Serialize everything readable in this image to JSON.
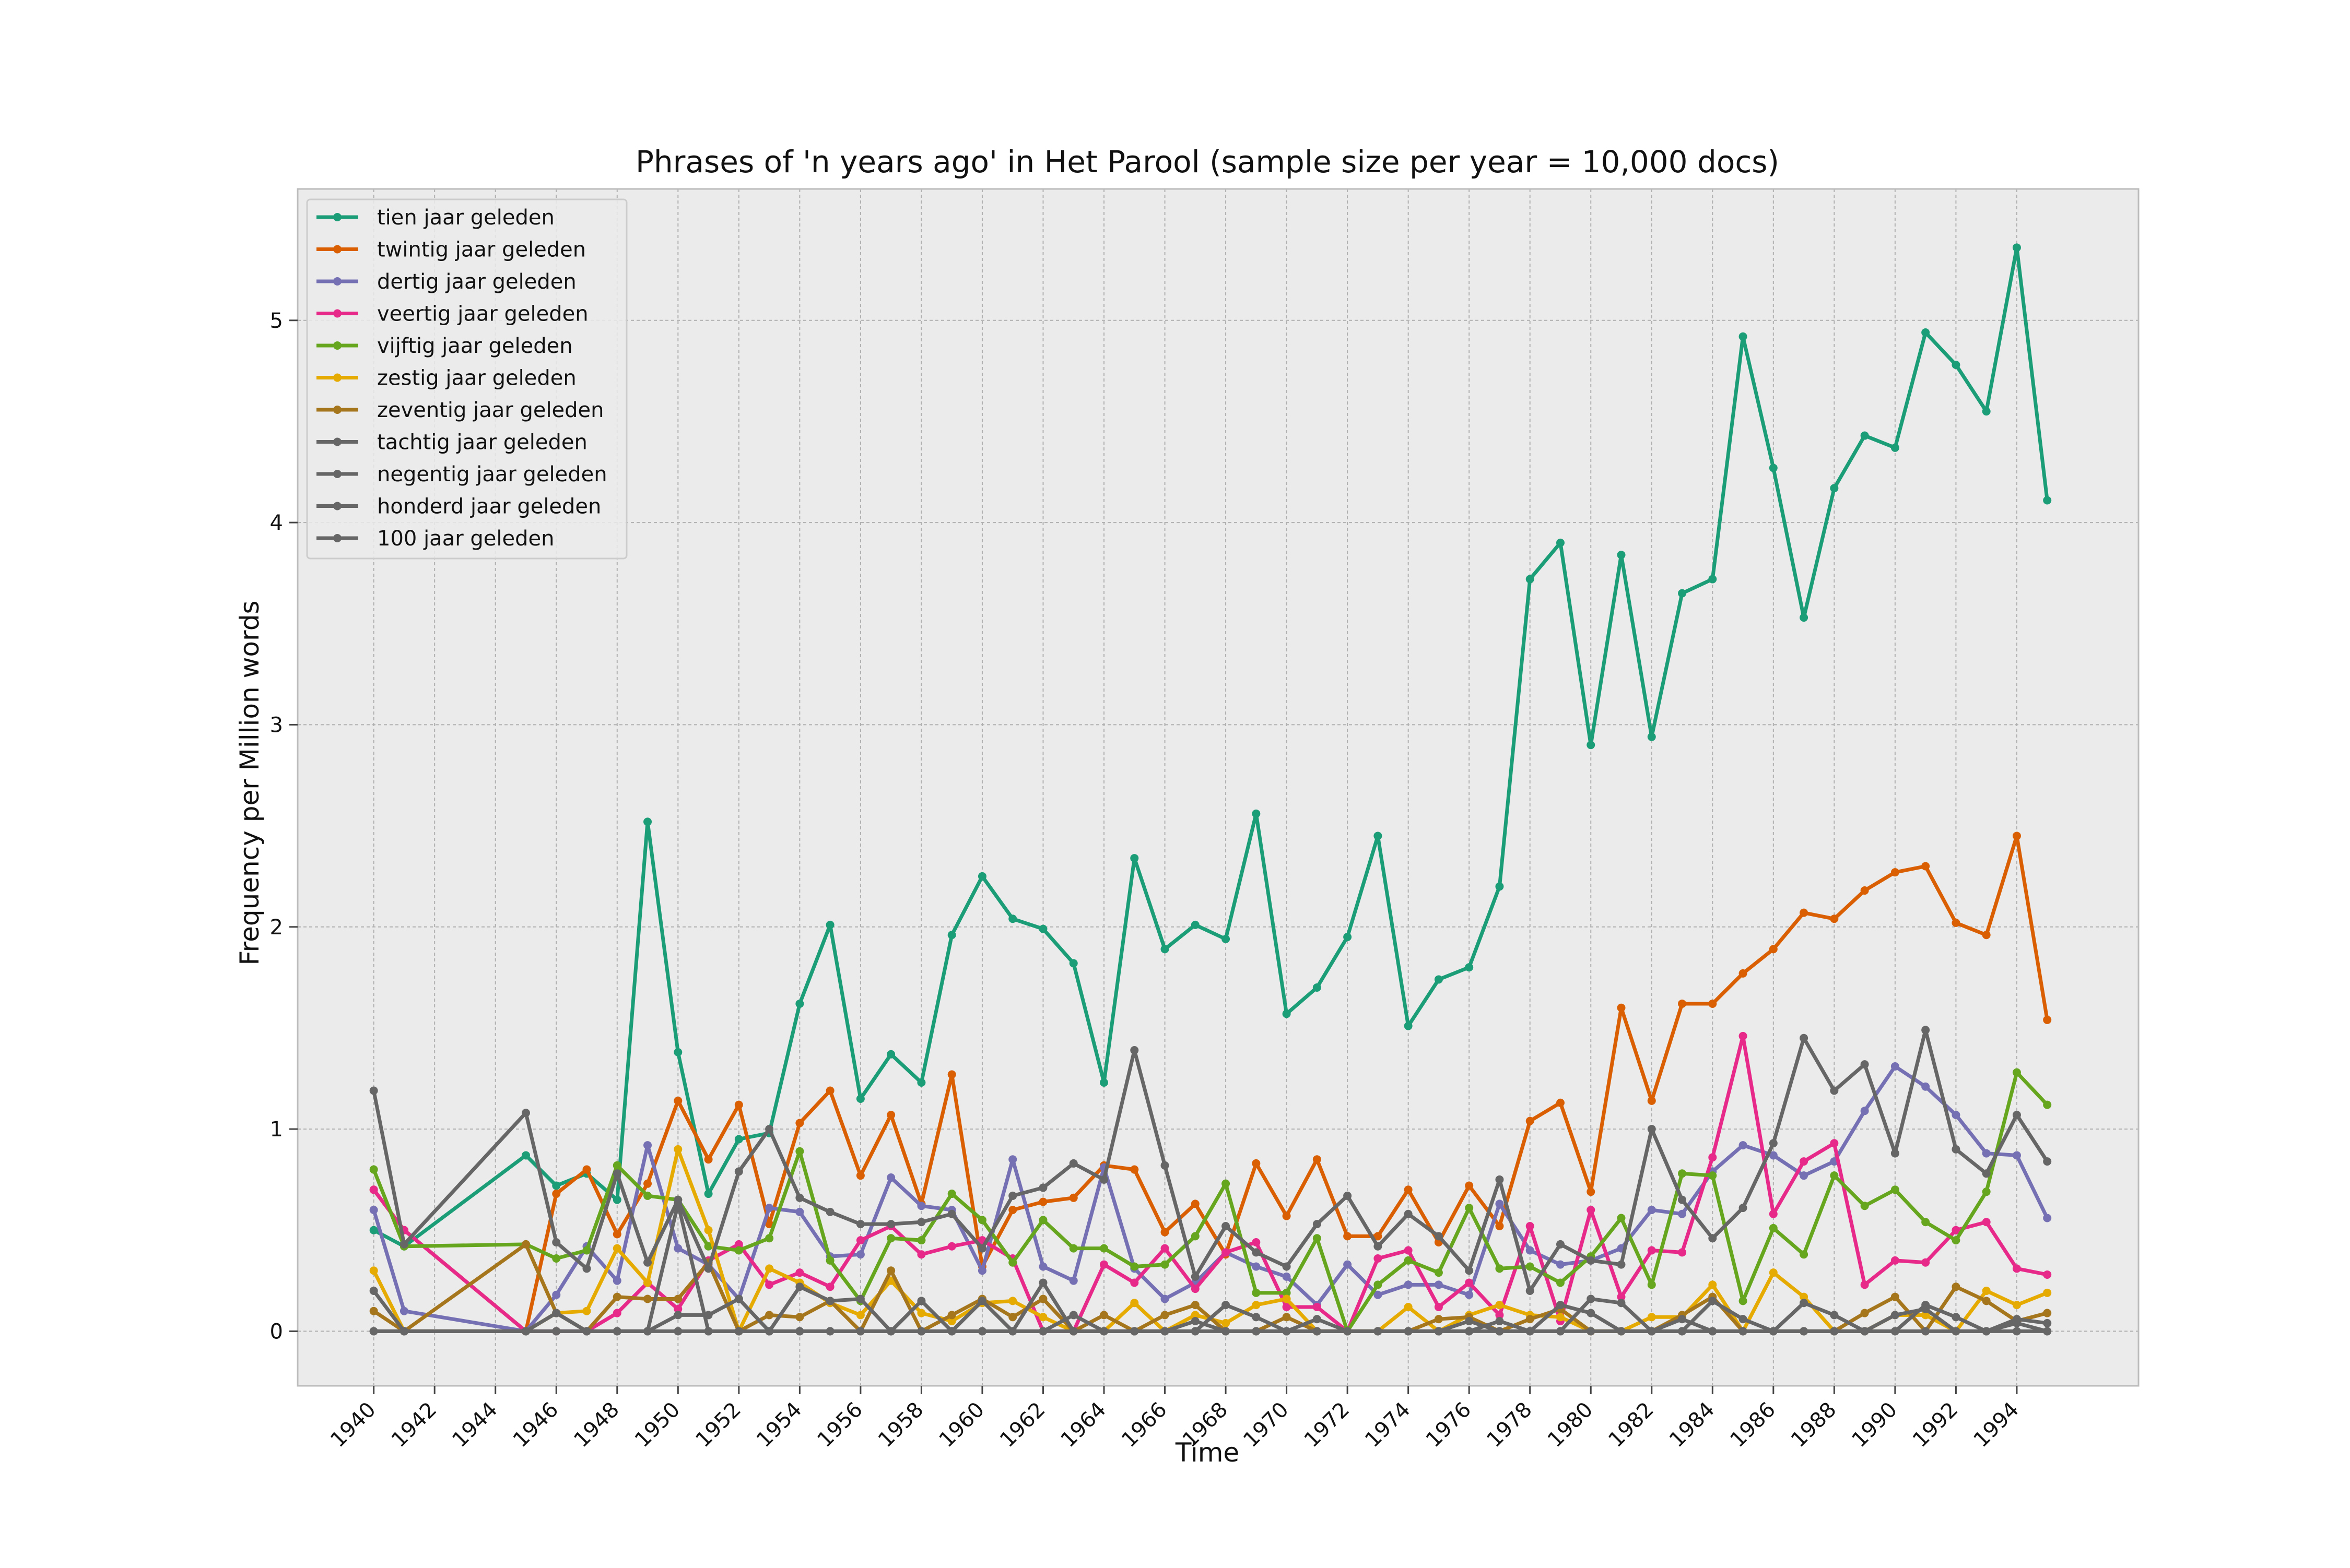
{
  "chart_data": {
    "type": "line",
    "title": "Phrases of 'n years ago' in Het Parool (sample size per year = 10,000 docs)",
    "xlabel": "Time",
    "ylabel": "Frequency per Million words",
    "xlim": [
      1937.5,
      1998
    ],
    "ylim": [
      -0.27,
      5.65
    ],
    "xticks": [
      1940,
      1942,
      1944,
      1946,
      1948,
      1950,
      1952,
      1954,
      1956,
      1958,
      1960,
      1962,
      1964,
      1966,
      1968,
      1970,
      1972,
      1974,
      1976,
      1978,
      1980,
      1982,
      1984,
      1986,
      1988,
      1990,
      1992,
      1994
    ],
    "yticks": [
      0,
      1,
      2,
      3,
      4,
      5
    ],
    "grid": true,
    "legend_position": "top-left",
    "x": [
      1940,
      1941,
      1945,
      1946,
      1947,
      1948,
      1949,
      1950,
      1951,
      1952,
      1953,
      1954,
      1955,
      1956,
      1957,
      1958,
      1959,
      1960,
      1961,
      1962,
      1963,
      1964,
      1965,
      1966,
      1967,
      1968,
      1969,
      1970,
      1971,
      1972,
      1973,
      1974,
      1975,
      1976,
      1977,
      1978,
      1979,
      1980,
      1981,
      1982,
      1983,
      1984,
      1985,
      1986,
      1987,
      1988,
      1989,
      1990,
      1991,
      1992,
      1993,
      1994,
      1995
    ],
    "series": [
      {
        "name": "tien jaar geleden",
        "color": "#1b9e77",
        "values": [
          0.5,
          0.42,
          0.87,
          0.72,
          0.78,
          0.65,
          2.52,
          1.38,
          0.68,
          0.95,
          0.98,
          1.62,
          2.01,
          1.15,
          1.37,
          1.23,
          1.96,
          2.25,
          2.04,
          1.99,
          1.82,
          1.23,
          2.34,
          1.89,
          2.01,
          1.94,
          2.56,
          1.57,
          1.7,
          1.95,
          2.45,
          1.51,
          1.74,
          1.8,
          2.2,
          3.72,
          3.9,
          2.9,
          3.84,
          2.94,
          3.65,
          3.72,
          4.92,
          4.27,
          3.53,
          4.17,
          4.43,
          4.37,
          4.94,
          4.78,
          4.55,
          5.36,
          4.11
        ]
      },
      {
        "name": "twintig jaar geleden",
        "color": "#d95f02",
        "values": [
          0.7,
          0.5,
          0.0,
          0.68,
          0.8,
          0.48,
          0.73,
          1.14,
          0.85,
          1.12,
          0.53,
          1.03,
          1.19,
          0.77,
          1.07,
          0.63,
          1.27,
          0.32,
          0.6,
          0.64,
          0.66,
          0.82,
          0.8,
          0.49,
          0.63,
          0.38,
          0.83,
          0.57,
          0.85,
          0.47,
          0.47,
          0.7,
          0.44,
          0.72,
          0.52,
          1.04,
          1.13,
          0.69,
          1.6,
          1.14,
          1.62,
          1.62,
          1.77,
          1.89,
          2.07,
          2.04,
          2.18,
          2.27,
          2.3,
          2.02,
          1.96,
          2.45,
          1.54
        ]
      },
      {
        "name": "dertig jaar geleden",
        "color": "#7570b3",
        "values": [
          0.6,
          0.1,
          0.0,
          0.18,
          0.42,
          0.25,
          0.92,
          0.41,
          0.33,
          0.16,
          0.61,
          0.59,
          0.37,
          0.38,
          0.76,
          0.62,
          0.6,
          0.3,
          0.85,
          0.32,
          0.25,
          0.81,
          0.31,
          0.16,
          0.24,
          0.39,
          0.32,
          0.27,
          0.13,
          0.33,
          0.18,
          0.23,
          0.23,
          0.18,
          0.63,
          0.4,
          0.33,
          0.35,
          0.41,
          0.6,
          0.58,
          0.79,
          0.92,
          0.87,
          0.77,
          0.84,
          1.09,
          1.31,
          1.21,
          1.07,
          0.88,
          0.87,
          0.56
        ]
      },
      {
        "name": "veertig jaar geleden",
        "color": "#e7298a",
        "values": [
          0.7,
          0.5,
          0.0,
          0.0,
          0.0,
          0.09,
          0.24,
          0.11,
          0.35,
          0.43,
          0.23,
          0.29,
          0.22,
          0.45,
          0.52,
          0.38,
          0.42,
          0.45,
          0.36,
          0.0,
          0.0,
          0.33,
          0.24,
          0.41,
          0.21,
          0.39,
          0.44,
          0.12,
          0.12,
          0.0,
          0.36,
          0.4,
          0.12,
          0.24,
          0.08,
          0.52,
          0.05,
          0.6,
          0.17,
          0.4,
          0.39,
          0.86,
          1.46,
          0.58,
          0.84,
          0.93,
          0.23,
          0.35,
          0.34,
          0.5,
          0.54,
          0.31,
          0.28
        ]
      },
      {
        "name": "vijftig jaar geleden",
        "color": "#66a61e",
        "values": [
          0.8,
          0.42,
          0.43,
          0.36,
          0.4,
          0.82,
          0.67,
          0.65,
          0.42,
          0.4,
          0.46,
          0.89,
          0.35,
          0.15,
          0.46,
          0.45,
          0.68,
          0.55,
          0.34,
          0.55,
          0.41,
          0.41,
          0.32,
          0.33,
          0.47,
          0.73,
          0.19,
          0.19,
          0.46,
          0.0,
          0.23,
          0.35,
          0.29,
          0.61,
          0.31,
          0.32,
          0.24,
          0.37,
          0.56,
          0.23,
          0.78,
          0.77,
          0.15,
          0.51,
          0.38,
          0.77,
          0.62,
          0.7,
          0.54,
          0.45,
          0.69,
          1.28,
          1.12
        ]
      },
      {
        "name": "zestig jaar geleden",
        "color": "#e6ab02",
        "values": [
          0.3,
          0.0,
          0.0,
          0.09,
          0.1,
          0.41,
          0.24,
          0.9,
          0.5,
          0.0,
          0.31,
          0.24,
          0.14,
          0.08,
          0.25,
          0.09,
          0.05,
          0.14,
          0.15,
          0.07,
          0.0,
          0.0,
          0.14,
          0.0,
          0.08,
          0.04,
          0.13,
          0.16,
          0.0,
          0.0,
          0.0,
          0.12,
          0.0,
          0.08,
          0.13,
          0.08,
          0.07,
          0.0,
          0.0,
          0.07,
          0.07,
          0.23,
          0.0,
          0.29,
          0.17,
          0.0,
          0.0,
          0.08,
          0.08,
          0.0,
          0.2,
          0.13,
          0.19
        ]
      },
      {
        "name": "zeventig jaar geleden",
        "color": "#a6761d",
        "values": [
          0.1,
          0.0,
          0.43,
          0.09,
          0.0,
          0.17,
          0.16,
          0.16,
          0.34,
          0.0,
          0.08,
          0.07,
          0.15,
          0.0,
          0.3,
          0.0,
          0.08,
          0.16,
          0.07,
          0.16,
          0.0,
          0.08,
          0.0,
          0.08,
          0.13,
          0.0,
          0.0,
          0.07,
          0.0,
          0.0,
          0.0,
          0.0,
          0.06,
          0.07,
          0.0,
          0.06,
          0.11,
          0.0,
          0.0,
          0.0,
          0.08,
          0.17,
          0.0,
          0.0,
          0.0,
          0.0,
          0.09,
          0.17,
          0.0,
          0.22,
          0.15,
          0.05,
          0.09
        ]
      },
      {
        "name": "tachtig jaar geleden",
        "color": "#666666",
        "values": [
          0.2,
          0.0,
          0.0,
          0.09,
          0.0,
          0.0,
          0.0,
          0.63,
          0.0,
          0.0,
          0.0,
          0.0,
          0.0,
          0.0,
          0.0,
          0.15,
          0.0,
          0.0,
          0.0,
          0.0,
          0.08,
          0.0,
          0.0,
          0.0,
          0.0,
          0.13,
          0.07,
          0.0,
          0.0,
          0.0,
          0.0,
          0.0,
          0.0,
          0.0,
          0.05,
          0.0,
          0.13,
          0.09,
          0.0,
          0.0,
          0.06,
          0.0,
          0.0,
          0.0,
          0.14,
          0.08,
          0.0,
          0.08,
          0.11,
          0.0,
          0.0,
          0.04,
          0.0
        ]
      },
      {
        "name": "negentig jaar geleden",
        "color": "#666666",
        "values": [
          0.0,
          0.0,
          0.0,
          0.0,
          0.0,
          0.0,
          0.0,
          0.08,
          0.08,
          0.16,
          0.0,
          0.22,
          0.15,
          0.16,
          0.0,
          0.0,
          0.0,
          0.15,
          0.0,
          0.24,
          0.0,
          0.0,
          0.0,
          0.0,
          0.05,
          0.0,
          0.0,
          0.0,
          0.06,
          0.0,
          0.0,
          0.0,
          0.0,
          0.05,
          0.0,
          0.0,
          0.0,
          0.16,
          0.14,
          0.0,
          0.0,
          0.15,
          0.06,
          0.0,
          0.0,
          0.0,
          0.0,
          0.0,
          0.13,
          0.07,
          0.0,
          0.06,
          0.04
        ]
      },
      {
        "name": "honderd jaar geleden",
        "color": "#666666",
        "values": [
          1.19,
          0.43,
          1.08,
          0.44,
          0.31,
          0.78,
          0.34,
          0.65,
          0.31,
          0.79,
          1.0,
          0.66,
          0.59,
          0.53,
          0.53,
          0.54,
          0.58,
          0.41,
          0.67,
          0.71,
          0.83,
          0.75,
          1.39,
          0.82,
          0.27,
          0.52,
          0.39,
          0.32,
          0.53,
          0.67,
          0.42,
          0.58,
          0.47,
          0.3,
          0.75,
          0.2,
          0.43,
          0.35,
          0.33,
          1.0,
          0.65,
          0.46,
          0.61,
          0.93,
          1.45,
          1.19,
          1.32,
          0.88,
          1.49,
          0.9,
          0.78,
          1.07,
          0.84
        ]
      },
      {
        "name": "100 jaar geleden",
        "color": "#666666",
        "values": [
          0.0,
          0.0,
          0.0,
          0.0,
          0.0,
          0.0,
          0.0,
          0.0,
          0.0,
          0.0,
          0.0,
          0.0,
          0.0,
          0.0,
          0.0,
          0.0,
          0.0,
          0.0,
          0.0,
          0.0,
          0.0,
          0.0,
          0.0,
          0.0,
          0.0,
          0.0,
          0.0,
          0.0,
          0.0,
          0.0,
          0.0,
          0.0,
          0.0,
          0.0,
          0.0,
          0.0,
          0.0,
          0.0,
          0.0,
          0.0,
          0.0,
          0.0,
          0.0,
          0.0,
          0.0,
          0.0,
          0.0,
          0.0,
          0.0,
          0.0,
          0.0,
          0.0,
          0.0
        ]
      }
    ]
  }
}
